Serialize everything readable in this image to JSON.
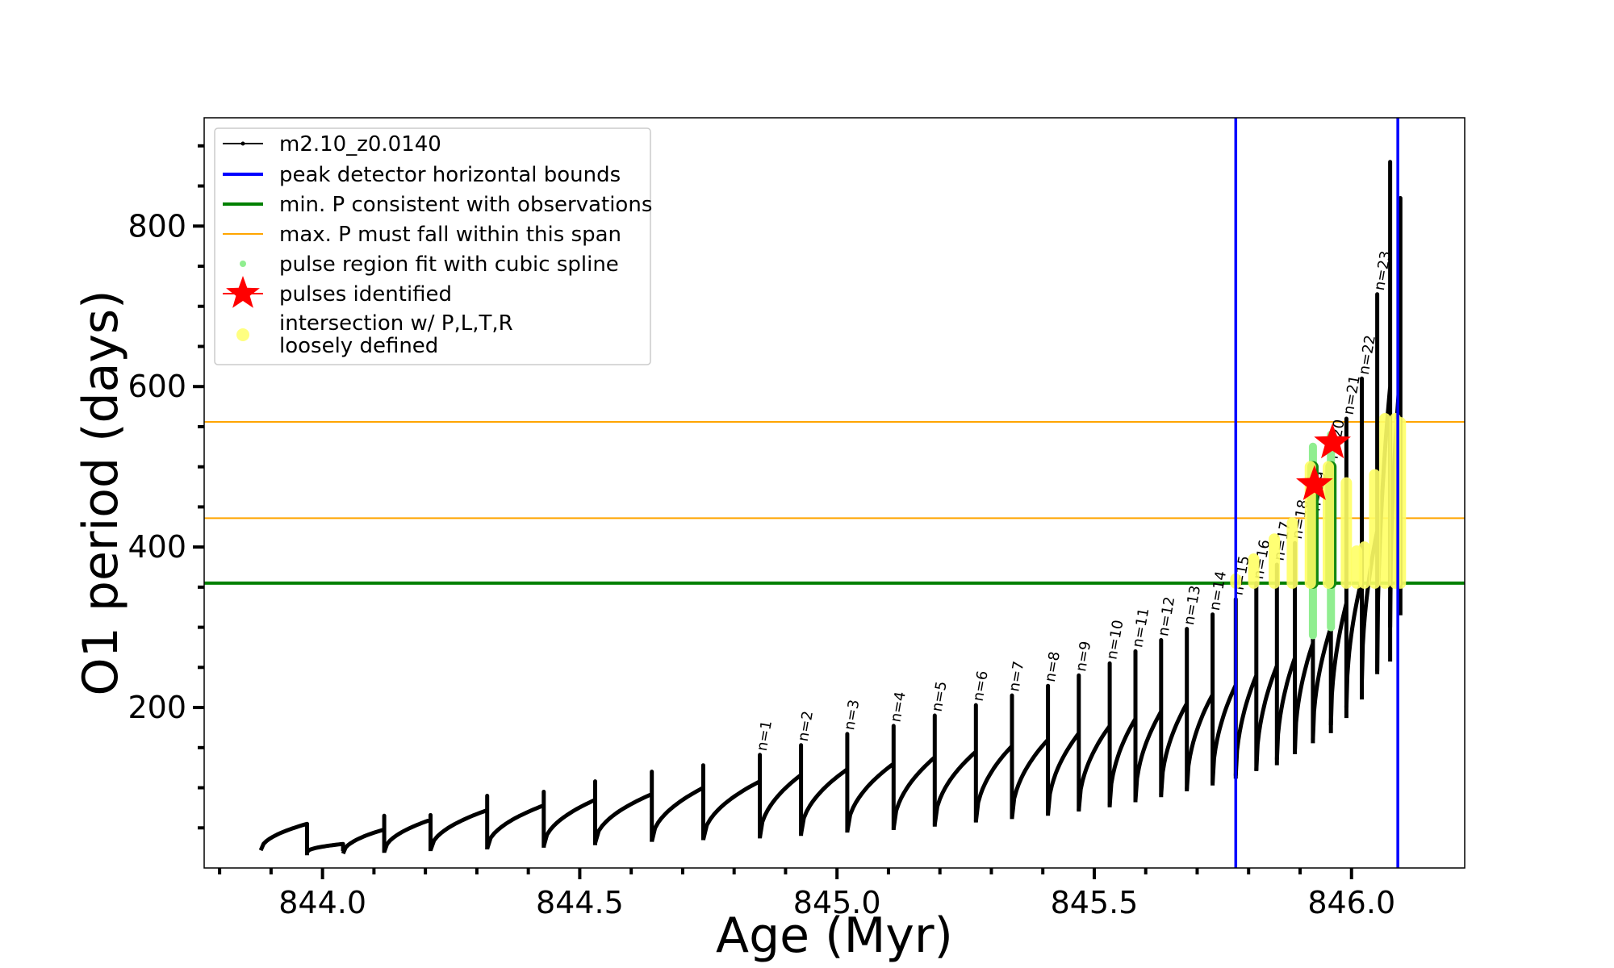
{
  "chart_data": {
    "type": "line",
    "xlabel": "Age (Myr)",
    "ylabel": "O1 period (days)",
    "xlim": [
      843.77,
      846.22
    ],
    "ylim": [
      0,
      935
    ],
    "xticks": [
      "844.0",
      "844.5",
      "845.0",
      "845.5",
      "846.0"
    ],
    "yticks": [
      "200",
      "400",
      "600",
      "800"
    ],
    "grid": false,
    "legend_position": "top-left",
    "legend": [
      {
        "label": "m2.10_z0.0140",
        "color": "#000000",
        "style": "line-dot"
      },
      {
        "label": "peak detector horizontal bounds",
        "color": "#0000ff",
        "style": "thick-line"
      },
      {
        "label": "min. P consistent with observations",
        "color": "#008000",
        "style": "thick-line"
      },
      {
        "label": "max. P must fall within this span",
        "color": "#ffa500",
        "style": "thin-line"
      },
      {
        "label": "pulse region fit with cubic spline",
        "color": "#90ee90",
        "style": "dot"
      },
      {
        "label": "pulses identified",
        "color": "#ff0000",
        "style": "star"
      },
      {
        "label": "intersection w/ P,L,T,R",
        "label2": "loosely defined",
        "color": "#ffff80",
        "style": "big-dot"
      }
    ],
    "vlines": [
      {
        "x": 845.775,
        "color": "#0000ff"
      },
      {
        "x": 846.09,
        "color": "#0000ff"
      }
    ],
    "hlines": [
      {
        "y": 355,
        "color": "#008000"
      },
      {
        "y": 436,
        "color": "#ffa500"
      },
      {
        "y": 556,
        "color": "#ffa500"
      }
    ],
    "series": [
      {
        "name": "m2.10_z0.0140",
        "pulses": [
          {
            "n": "",
            "start": 843.88,
            "end": 843.97,
            "min": 15,
            "start_val": 22,
            "end_val": 55,
            "peak": 55
          },
          {
            "n": "",
            "start": 843.97,
            "end": 844.04,
            "min": 20,
            "start_val": 20,
            "end_val": 30,
            "peak": 30
          },
          {
            "n": "",
            "start": 844.04,
            "end": 844.12,
            "min": 18,
            "start_val": 18,
            "end_val": 48,
            "peak": 65
          },
          {
            "n": "",
            "start": 844.12,
            "end": 844.21,
            "min": 20,
            "start_val": 20,
            "end_val": 60,
            "peak": 66
          },
          {
            "n": "",
            "start": 844.21,
            "end": 844.32,
            "min": 22,
            "start_val": 22,
            "end_val": 72,
            "peak": 90
          },
          {
            "n": "",
            "start": 844.32,
            "end": 844.43,
            "min": 24,
            "start_val": 24,
            "end_val": 78,
            "peak": 95
          },
          {
            "n": "",
            "start": 844.43,
            "end": 844.53,
            "min": 27,
            "start_val": 27,
            "end_val": 85,
            "peak": 108
          },
          {
            "n": "",
            "start": 844.53,
            "end": 844.64,
            "min": 31,
            "start_val": 31,
            "end_val": 92,
            "peak": 120
          },
          {
            "n": "",
            "start": 844.64,
            "end": 844.74,
            "min": 33,
            "start_val": 33,
            "end_val": 100,
            "peak": 128
          },
          {
            "n": "n=1",
            "start": 844.74,
            "end": 844.85,
            "min": 35,
            "start_val": 35,
            "end_val": 108,
            "peak": 141
          },
          {
            "n": "n=2",
            "start": 844.85,
            "end": 844.93,
            "min": 38,
            "start_val": 38,
            "end_val": 116,
            "peak": 153
          },
          {
            "n": "n=3",
            "start": 844.93,
            "end": 845.02,
            "min": 42,
            "start_val": 42,
            "end_val": 123,
            "peak": 167
          },
          {
            "n": "n=4",
            "start": 845.02,
            "end": 845.11,
            "min": 45,
            "start_val": 45,
            "end_val": 130,
            "peak": 177
          },
          {
            "n": "n=5",
            "start": 845.11,
            "end": 845.19,
            "min": 49,
            "start_val": 49,
            "end_val": 138,
            "peak": 190
          },
          {
            "n": "n=6",
            "start": 845.19,
            "end": 845.27,
            "min": 54,
            "start_val": 54,
            "end_val": 145,
            "peak": 203
          },
          {
            "n": "n=7",
            "start": 845.27,
            "end": 845.34,
            "min": 58,
            "start_val": 58,
            "end_val": 152,
            "peak": 215
          },
          {
            "n": "n=8",
            "start": 845.34,
            "end": 845.41,
            "min": 62,
            "start_val": 62,
            "end_val": 160,
            "peak": 227
          },
          {
            "n": "n=9",
            "start": 845.41,
            "end": 845.47,
            "min": 67,
            "start_val": 67,
            "end_val": 168,
            "peak": 240
          },
          {
            "n": "n=10",
            "start": 845.47,
            "end": 845.53,
            "min": 72,
            "start_val": 72,
            "end_val": 177,
            "peak": 255
          },
          {
            "n": "n=11",
            "start": 845.53,
            "end": 845.58,
            "min": 78,
            "start_val": 78,
            "end_val": 186,
            "peak": 270
          },
          {
            "n": "n=12",
            "start": 845.58,
            "end": 845.63,
            "min": 84,
            "start_val": 84,
            "end_val": 195,
            "peak": 284
          },
          {
            "n": "n=13",
            "start": 845.63,
            "end": 845.68,
            "min": 91,
            "start_val": 91,
            "end_val": 205,
            "peak": 298
          },
          {
            "n": "n=14",
            "start": 845.68,
            "end": 845.73,
            "min": 98,
            "start_val": 98,
            "end_val": 216,
            "peak": 316
          },
          {
            "n": "n=15",
            "start": 845.73,
            "end": 845.775,
            "min": 106,
            "start_val": 106,
            "end_val": 228,
            "peak": 335
          },
          {
            "n": "n=16",
            "start": 845.775,
            "end": 845.815,
            "min": 115,
            "start_val": 115,
            "end_val": 240,
            "peak": 355
          },
          {
            "n": "n=17",
            "start": 845.815,
            "end": 845.855,
            "min": 122,
            "start_val": 122,
            "end_val": 252,
            "peak": 378
          },
          {
            "n": "n=18",
            "start": 845.855,
            "end": 845.89,
            "min": 135,
            "start_val": 135,
            "end_val": 262,
            "peak": 405
          },
          {
            "n": "n=19",
            "start": 845.89,
            "end": 845.925,
            "min": 148,
            "start_val": 148,
            "end_val": 280,
            "peak": 440
          },
          {
            "n": "n=20",
            "start": 845.925,
            "end": 845.96,
            "min": 160,
            "start_val": 160,
            "end_val": 300,
            "peak": 505
          },
          {
            "n": "n=21",
            "start": 845.96,
            "end": 845.99,
            "min": 178,
            "start_val": 178,
            "end_val": 330,
            "peak": 560
          },
          {
            "n": "n=22",
            "start": 845.99,
            "end": 846.02,
            "min": 200,
            "start_val": 200,
            "end_val": 360,
            "peak": 610
          },
          {
            "n": "n=23",
            "start": 846.02,
            "end": 846.05,
            "min": 230,
            "start_val": 230,
            "end_val": 420,
            "peak": 715
          },
          {
            "n": "",
            "start": 846.05,
            "end": 846.075,
            "min": 245,
            "start_val": 245,
            "end_val": 600,
            "peak": 880
          },
          {
            "n": "",
            "start": 846.075,
            "end": 846.095,
            "min": 300,
            "start_val": 300,
            "end_val": 620,
            "peak": 835
          }
        ]
      }
    ],
    "pulse_region_spline": [
      {
        "x": 845.925,
        "y_from": 290,
        "y_to": 525
      },
      {
        "x": 845.96,
        "y_from": 300,
        "y_to": 540
      }
    ],
    "pulses_identified": [
      {
        "x": 845.928,
        "y": 478
      },
      {
        "x": 845.963,
        "y": 530
      }
    ],
    "intersection_regions": [
      {
        "x": 845.775,
        "y_from": 355,
        "y_to": 360
      },
      {
        "x": 845.81,
        "y_from": 355,
        "y_to": 385
      },
      {
        "x": 845.85,
        "y_from": 355,
        "y_to": 410
      },
      {
        "x": 845.885,
        "y_from": 355,
        "y_to": 430
      },
      {
        "x": 845.92,
        "y_from": 355,
        "y_to": 500
      },
      {
        "x": 845.955,
        "y_from": 355,
        "y_to": 500
      },
      {
        "x": 845.99,
        "y_from": 355,
        "y_to": 480
      },
      {
        "x": 846.01,
        "y_from": 355,
        "y_to": 395
      },
      {
        "x": 846.025,
        "y_from": 355,
        "y_to": 400
      },
      {
        "x": 846.045,
        "y_from": 355,
        "y_to": 490
      },
      {
        "x": 846.065,
        "y_from": 355,
        "y_to": 560
      },
      {
        "x": 846.085,
        "y_from": 355,
        "y_to": 560
      },
      {
        "x": 846.095,
        "y_from": 355,
        "y_to": 555
      }
    ]
  }
}
